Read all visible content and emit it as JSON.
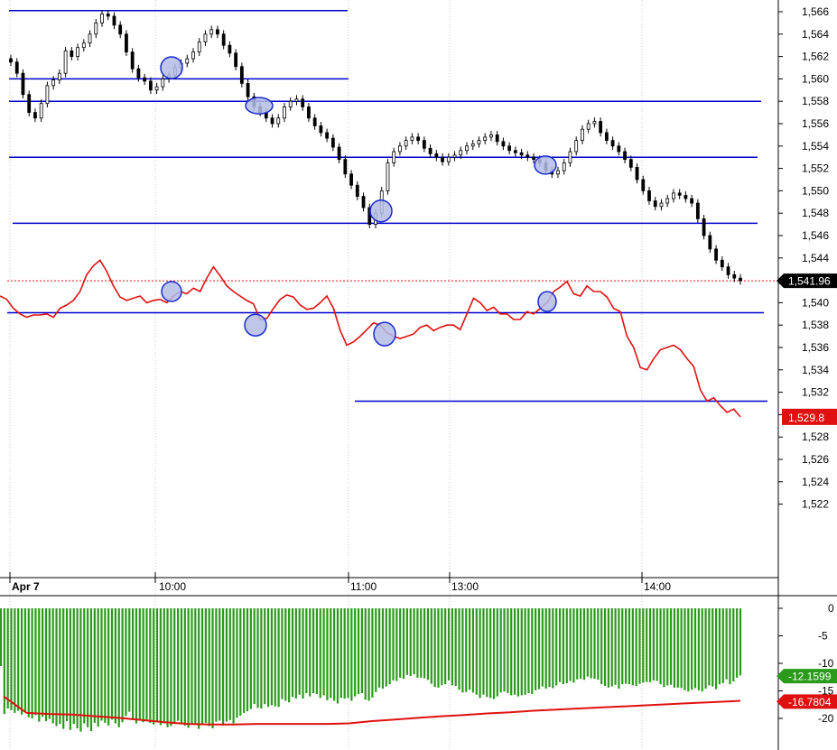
{
  "chart_data": [
    {
      "type": "candlestick",
      "panel": "price",
      "y_ticks": [
        "1,566",
        "1,564",
        "1,562",
        "1,560",
        "1,558",
        "1,556",
        "1,554",
        "1,552",
        "1,550",
        "1,548",
        "1,546",
        "1,544",
        "1,542",
        "1,540",
        "1,538",
        "1,536",
        "1,534",
        "1,532",
        "1,530",
        "1,528",
        "1,526",
        "1,524",
        "1,522"
      ],
      "ylim": [
        1521,
        1567
      ],
      "x_ticks": [
        "Apr 7",
        "10:00",
        "11:00",
        "13:00",
        "14:00"
      ],
      "last_price_label": "1,541.96",
      "last_price": 1541.96,
      "close_series": [
        1561.5,
        1560.5,
        1558.6,
        1557.0,
        1556.5,
        1557.8,
        1559.4,
        1559.9,
        1560.5,
        1562.5,
        1562.0,
        1562.8,
        1563.2,
        1564.0,
        1565.0,
        1565.8,
        1565.6,
        1564.8,
        1564.0,
        1562.4,
        1560.9,
        1560.1,
        1559.8,
        1559.0,
        1559.3,
        1560.0,
        1560.3,
        1561.0,
        1561.4,
        1561.8,
        1562.4,
        1563.3,
        1564.0,
        1564.4,
        1564.0,
        1563.0,
        1562.3,
        1561.1,
        1559.6,
        1558.4,
        1557.5,
        1557.0,
        1556.5,
        1556.0,
        1556.5,
        1557.5,
        1558.0,
        1558.2,
        1557.5,
        1556.5,
        1555.8,
        1555.2,
        1554.7,
        1553.9,
        1552.8,
        1551.5,
        1550.5,
        1549.5,
        1548.5,
        1547.0,
        1548.0,
        1550.0,
        1552.5,
        1553.5,
        1554.0,
        1554.5,
        1554.8,
        1554.5,
        1553.8,
        1553.3,
        1553.0,
        1552.6,
        1553.0,
        1553.2,
        1553.6,
        1554.0,
        1554.2,
        1554.5,
        1554.8,
        1555.0,
        1554.4,
        1554.0,
        1553.6,
        1553.4,
        1553.2,
        1553.0,
        1552.8,
        1552.5,
        1551.8,
        1551.5,
        1551.8,
        1552.5,
        1553.5,
        1554.5,
        1555.5,
        1556.0,
        1556.2,
        1555.2,
        1554.5,
        1554.0,
        1553.5,
        1552.8,
        1552.1,
        1551.0,
        1550.0,
        1549.1,
        1548.6,
        1548.9,
        1549.3,
        1549.8,
        1549.6,
        1549.3,
        1548.9,
        1547.5,
        1546.0,
        1544.8,
        1543.8,
        1543.2,
        1542.5,
        1542.2,
        1541.96
      ]
    },
    {
      "type": "line",
      "panel": "price",
      "last_value_label": "1,529.8",
      "last_value": 1529.8,
      "series": [
        {
          "values": [
            1540.6,
            1540.3,
            1539.5,
            1539.0,
            1538.7,
            1538.9,
            1538.9,
            1539.0,
            1538.7,
            1539.5,
            1539.8,
            1540.2,
            1541.0,
            1542.5,
            1543.3,
            1543.8,
            1542.8,
            1541.5,
            1540.5,
            1540.2,
            1540.4,
            1540.6,
            1540.0,
            1540.2,
            1540.3,
            1540.0,
            1540.6,
            1541.0,
            1540.8,
            1541.3,
            1541.0,
            1542.2,
            1543.2,
            1542.4,
            1541.5,
            1541.0,
            1540.6,
            1540.2,
            1539.9,
            1538.5,
            1538.6,
            1539.5,
            1540.3,
            1540.7,
            1540.5,
            1539.8,
            1539.4,
            1539.5,
            1540.0,
            1540.6,
            1539.5,
            1537.5,
            1536.2,
            1536.5,
            1537.0,
            1537.6,
            1538.2,
            1538.0,
            1537.3,
            1537.0,
            1536.8,
            1537.0,
            1537.2,
            1537.8,
            1538.0,
            1537.5,
            1537.8,
            1538.0,
            1538.0,
            1537.6,
            1539.0,
            1540.4,
            1540.0,
            1539.3,
            1539.6,
            1539.0,
            1539.0,
            1538.5,
            1538.5,
            1539.2,
            1539.0,
            1539.5,
            1540.0,
            1541.0,
            1541.4,
            1541.9,
            1540.8,
            1540.6,
            1541.5,
            1541.0,
            1541.0,
            1540.5,
            1539.5,
            1539.2,
            1537.0,
            1536.0,
            1534.2,
            1534.0,
            1535.0,
            1535.8,
            1536.0,
            1536.2,
            1535.8,
            1535.0,
            1534.3,
            1532.2,
            1531.2,
            1531.5,
            1530.8,
            1530.2,
            1530.5,
            1529.8
          ]
        }
      ]
    },
    {
      "type": "bar",
      "panel": "indicator",
      "y_ticks": [
        "0",
        "-5",
        "-10",
        "-15",
        "-20"
      ],
      "ylim": [
        -23,
        1
      ],
      "bar_label": "-12.1599",
      "bar_last": -12.1599,
      "line_label": "-16.7804",
      "line_last": -16.7804,
      "bar_color": "#2a9a1a",
      "line_color": "#e01010",
      "values": [
        -10.5,
        -19.2,
        -18.2,
        -18.5,
        -19.0,
        -18.6,
        -19.3,
        -18.8,
        -19.8,
        -20.0,
        -19.4,
        -20.6,
        -19.7,
        -20.5,
        -20.1,
        -20.9,
        -21.4,
        -21.0,
        -21.9,
        -20.5,
        -22.1,
        -21.0,
        -21.8,
        -22.4,
        -20.9,
        -21.6,
        -22.3,
        -20.8,
        -21.5,
        -20.4,
        -20.8,
        -21.3,
        -20.2,
        -20.9,
        -21.6,
        -20.7,
        -19.6,
        -18.8,
        -20.3,
        -20.9,
        -20.4,
        -20.7,
        -20.3,
        -20.8,
        -21.1,
        -20.6,
        -21.2,
        -20.9,
        -21.6,
        -21.4,
        -21.0,
        -20.4,
        -20.9,
        -21.3,
        -21.7,
        -21.0,
        -21.2,
        -21.9,
        -20.9,
        -20.8,
        -21.4,
        -21.8,
        -20.6,
        -20.4,
        -21.3,
        -20.6,
        -20.3,
        -20.9,
        -19.9,
        -19.5,
        -19.0,
        -18.7,
        -18.3,
        -17.4,
        -18.1,
        -18.2,
        -17.4,
        -17.9,
        -17.6,
        -17.8,
        -17.9,
        -16.5,
        -16.8,
        -17.1,
        -16.1,
        -16.4,
        -15.7,
        -16.4,
        -15.4,
        -16.0,
        -15.4,
        -15.6,
        -16.3,
        -15.8,
        -16.7,
        -16.3,
        -16.8,
        -17.3,
        -16.3,
        -16.4,
        -16.3,
        -16.8,
        -16.0,
        -15.6,
        -15.4,
        -16.6,
        -16.8,
        -16.2,
        -15.2,
        -14.4,
        -14.6,
        -14.2,
        -13.8,
        -13.1,
        -13.2,
        -12.6,
        -12.8,
        -12.1,
        -12.3,
        -12.0,
        -12.6,
        -12.6,
        -12.7,
        -13.0,
        -13.7,
        -14.3,
        -14.4,
        -14.0,
        -13.8,
        -13.1,
        -14.0,
        -14.1,
        -14.8,
        -15.3,
        -15.2,
        -14.8,
        -15.3,
        -15.7,
        -16.3,
        -15.7,
        -16.1,
        -16.3,
        -16.5,
        -16.0,
        -15.3,
        -15.1,
        -15.4,
        -15.8,
        -15.7,
        -16.0,
        -15.8,
        -15.7,
        -15.4,
        -15.6,
        -14.9,
        -14.7,
        -14.2,
        -14.6,
        -14.3,
        -14.5,
        -14.0,
        -13.4,
        -13.8,
        -13.6,
        -13.2,
        -13.5,
        -12.9,
        -12.8,
        -13.0,
        -12.4,
        -12.7,
        -12.8,
        -13.0,
        -13.8,
        -14.1,
        -14.4,
        -14.2,
        -13.9,
        -14.6,
        -13.8,
        -13.7,
        -13.8,
        -14.0,
        -14.1,
        -13.7,
        -13.5,
        -13.4,
        -13.4,
        -13.1,
        -13.2,
        -13.8,
        -14.3,
        -14.0,
        -13.9,
        -14.4,
        -14.4,
        -14.5,
        -14.9,
        -15.1,
        -14.8,
        -14.5,
        -14.9,
        -15.1,
        -14.6,
        -14.0,
        -14.2,
        -14.7,
        -13.8,
        -13.6,
        -12.9,
        -13.8,
        -13.3,
        -12.6,
        -12.2
      ],
      "line_values": [
        -16.0,
        -19.0,
        -19.2,
        -19.3,
        -19.6,
        -19.9,
        -20.3,
        -20.7,
        -21.0,
        -21.1,
        -21.1,
        -21.0,
        -21.0,
        -21.0,
        -21.0,
        -20.9,
        -20.5,
        -20.2,
        -19.9,
        -19.6,
        -19.4,
        -19.1,
        -18.9,
        -18.6,
        -18.4,
        -18.2,
        -18.0,
        -17.8,
        -17.6,
        -17.4,
        -17.2,
        -17.0,
        -16.8
      ]
    }
  ],
  "colors": {
    "level_lines": "#0000cc",
    "candles": "#000000",
    "price_line": "#e01010",
    "markers_fill": "#b3bce6",
    "markers_stroke": "#1a2bd0"
  }
}
